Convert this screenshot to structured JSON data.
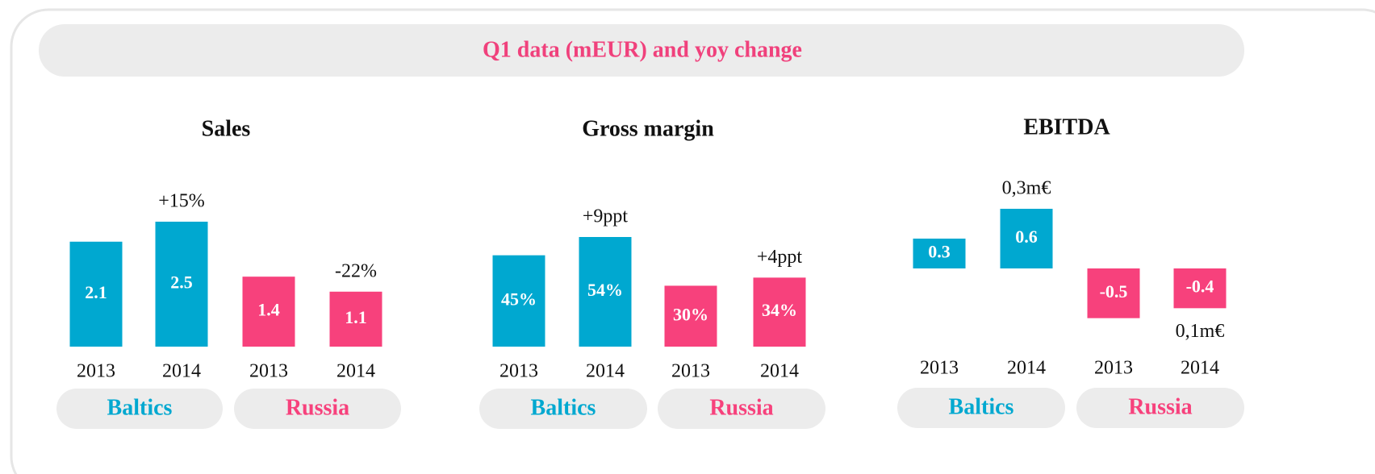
{
  "header": {
    "title": "Q1 data (mEUR) and yoy change"
  },
  "chart_data": [
    {
      "type": "bar",
      "title": "Sales",
      "categories": [
        "2013",
        "2014",
        "2013",
        "2014"
      ],
      "groups": [
        "Baltics",
        "Russia"
      ],
      "values": [
        2.1,
        2.5,
        1.4,
        1.1
      ],
      "colors": [
        "#00a8d0",
        "#00a8d0",
        "#f7417c",
        "#f7417c"
      ],
      "annotations": [
        null,
        "+15%",
        null,
        "-22%"
      ]
    },
    {
      "type": "bar",
      "title": "Gross margin",
      "categories": [
        "2013",
        "2014",
        "2013",
        "2014"
      ],
      "groups": [
        "Baltics",
        "Russia"
      ],
      "values": [
        45,
        54,
        30,
        34
      ],
      "value_labels": [
        "45%",
        "54%",
        "30%",
        "34%"
      ],
      "colors": [
        "#00a8d0",
        "#00a8d0",
        "#f7417c",
        "#f7417c"
      ],
      "annotations": [
        null,
        "+9ppt",
        null,
        "+4ppt"
      ]
    },
    {
      "type": "bar",
      "title": "EBITDA",
      "categories": [
        "2013",
        "2014",
        "2013",
        "2014"
      ],
      "groups": [
        "Baltics",
        "Russia"
      ],
      "values": [
        0.3,
        0.6,
        -0.5,
        -0.4
      ],
      "colors": [
        "#00a8d0",
        "#00a8d0",
        "#f7417c",
        "#f7417c"
      ],
      "annotations": [
        null,
        "0,3m€",
        null,
        "0,1m€"
      ]
    }
  ]
}
